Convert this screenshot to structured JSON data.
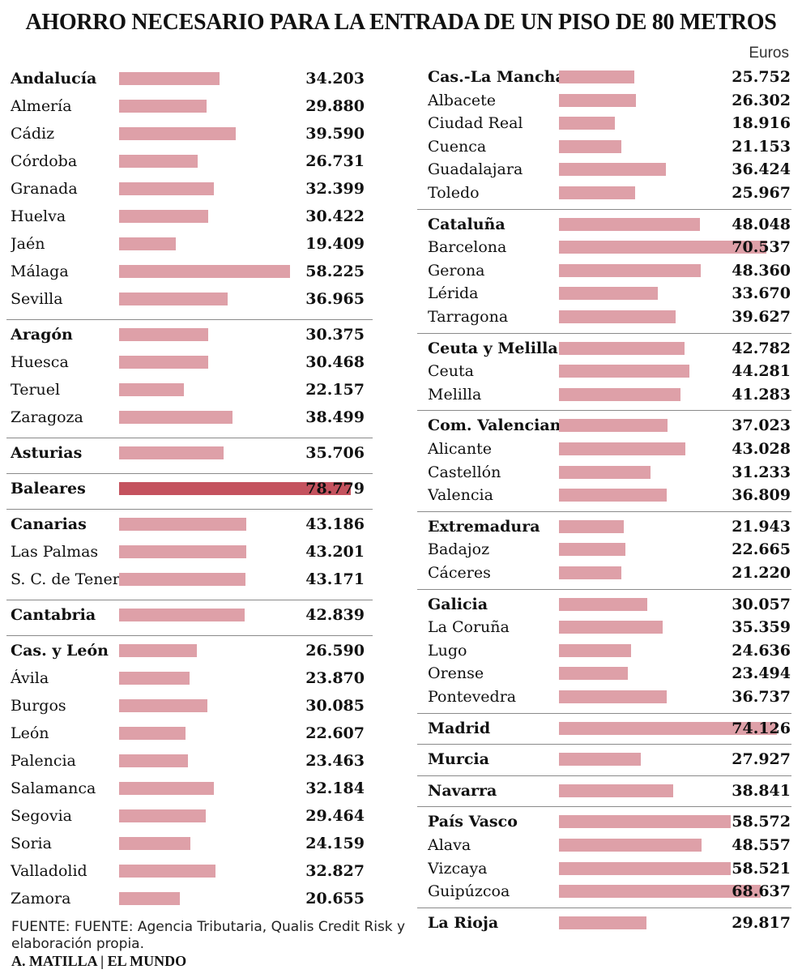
{
  "title": "AHORRO NECESARIO PARA LA ENTRADA DE UN PISO DE 80 METROS",
  "unit": "Euros",
  "source": "FUENTE: FUENTE: Agencia Tributaria, Qualis Credit Risk y elaboración propia.",
  "credit": "A. MATILLA | EL MUNDO",
  "colors": {
    "bar": "#dea0a8",
    "highlight": "#c4525e",
    "separator": "#8a8a8a"
  },
  "chart_data": {
    "type": "bar",
    "orientation": "horizontal",
    "x_range": [
      0,
      80000
    ],
    "grid": false,
    "columns": [
      {
        "groups": [
          {
            "items": [
              {
                "label": "Andalucía",
                "value": 34203,
                "display": "34.203",
                "aggregate": true
              },
              {
                "label": "Almería",
                "value": 29880,
                "display": "29.880"
              },
              {
                "label": "Cádiz",
                "value": 39590,
                "display": "39.590"
              },
              {
                "label": "Córdoba",
                "value": 26731,
                "display": "26.731"
              },
              {
                "label": "Granada",
                "value": 32399,
                "display": "32.399"
              },
              {
                "label": "Huelva",
                "value": 30422,
                "display": "30.422"
              },
              {
                "label": "Jaén",
                "value": 19409,
                "display": "19.409"
              },
              {
                "label": "Málaga",
                "value": 58225,
                "display": "58.225"
              },
              {
                "label": "Sevilla",
                "value": 36965,
                "display": "36.965"
              }
            ]
          },
          {
            "items": [
              {
                "label": "Aragón",
                "value": 30375,
                "display": "30.375",
                "aggregate": true
              },
              {
                "label": "Huesca",
                "value": 30468,
                "display": "30.468"
              },
              {
                "label": "Teruel",
                "value": 22157,
                "display": "22.157"
              },
              {
                "label": "Zaragoza",
                "value": 38499,
                "display": "38.499"
              }
            ]
          },
          {
            "items": [
              {
                "label": "Asturias",
                "value": 35706,
                "display": "35.706",
                "aggregate": true
              }
            ]
          },
          {
            "items": [
              {
                "label": "Baleares",
                "value": 78779,
                "display": "78.779",
                "aggregate": true,
                "highlight": true
              }
            ]
          },
          {
            "items": [
              {
                "label": "Canarias",
                "value": 43186,
                "display": "43.186",
                "aggregate": true
              },
              {
                "label": "Las Palmas",
                "value": 43201,
                "display": "43.201"
              },
              {
                "label": "S. C. de Tenerife",
                "value": 43171,
                "display": "43.171"
              }
            ]
          },
          {
            "items": [
              {
                "label": "Cantabria",
                "value": 42839,
                "display": "42.839",
                "aggregate": true
              }
            ]
          },
          {
            "items": [
              {
                "label": "Cas. y León",
                "value": 26590,
                "display": "26.590",
                "aggregate": true
              },
              {
                "label": "Ávila",
                "value": 23870,
                "display": "23.870"
              },
              {
                "label": "Burgos",
                "value": 30085,
                "display": "30.085"
              },
              {
                "label": "León",
                "value": 22607,
                "display": "22.607"
              },
              {
                "label": "Palencia",
                "value": 23463,
                "display": "23.463"
              },
              {
                "label": "Salamanca",
                "value": 32184,
                "display": "32.184"
              },
              {
                "label": "Segovia",
                "value": 29464,
                "display": "29.464"
              },
              {
                "label": "Soria",
                "value": 24159,
                "display": "24.159"
              },
              {
                "label": "Valladolid",
                "value": 32827,
                "display": "32.827"
              },
              {
                "label": "Zamora",
                "value": 20655,
                "display": "20.655"
              }
            ]
          }
        ]
      },
      {
        "groups": [
          {
            "items": [
              {
                "label": "Cas.-La Mancha",
                "value": 25752,
                "display": "25.752",
                "aggregate": true
              },
              {
                "label": "Albacete",
                "value": 26302,
                "display": "26.302"
              },
              {
                "label": "Ciudad Real",
                "value": 18916,
                "display": "18.916"
              },
              {
                "label": "Cuenca",
                "value": 21153,
                "display": "21.153"
              },
              {
                "label": "Guadalajara",
                "value": 36424,
                "display": "36.424"
              },
              {
                "label": "Toledo",
                "value": 25967,
                "display": "25.967"
              }
            ]
          },
          {
            "items": [
              {
                "label": "Cataluña",
                "value": 48048,
                "display": "48.048",
                "aggregate": true
              },
              {
                "label": "Barcelona",
                "value": 70537,
                "display": "70.537"
              },
              {
                "label": "Gerona",
                "value": 48360,
                "display": "48.360"
              },
              {
                "label": "Lérida",
                "value": 33670,
                "display": "33.670"
              },
              {
                "label": "Tarragona",
                "value": 39627,
                "display": "39.627"
              }
            ]
          },
          {
            "items": [
              {
                "label": "Ceuta y Melilla",
                "value": 42782,
                "display": "42.782",
                "aggregate": true
              },
              {
                "label": "Ceuta",
                "value": 44281,
                "display": "44.281"
              },
              {
                "label": "Melilla",
                "value": 41283,
                "display": "41.283"
              }
            ]
          },
          {
            "items": [
              {
                "label": "Com. Valenciana",
                "value": 37023,
                "display": "37.023",
                "aggregate": true
              },
              {
                "label": "Alicante",
                "value": 43028,
                "display": "43.028"
              },
              {
                "label": "Castellón",
                "value": 31233,
                "display": "31.233"
              },
              {
                "label": "Valencia",
                "value": 36809,
                "display": "36.809"
              }
            ]
          },
          {
            "items": [
              {
                "label": "Extremadura",
                "value": 21943,
                "display": "21.943",
                "aggregate": true
              },
              {
                "label": "Badajoz",
                "value": 22665,
                "display": "22.665"
              },
              {
                "label": "Cáceres",
                "value": 21220,
                "display": "21.220"
              }
            ]
          },
          {
            "items": [
              {
                "label": "Galicia",
                "value": 30057,
                "display": "30.057",
                "aggregate": true
              },
              {
                "label": "La Coruña",
                "value": 35359,
                "display": "35.359"
              },
              {
                "label": "Lugo",
                "value": 24636,
                "display": "24.636"
              },
              {
                "label": "Orense",
                "value": 23494,
                "display": "23.494"
              },
              {
                "label": "Pontevedra",
                "value": 36737,
                "display": "36.737"
              }
            ]
          },
          {
            "items": [
              {
                "label": "Madrid",
                "value": 74126,
                "display": "74.126",
                "aggregate": true
              }
            ]
          },
          {
            "items": [
              {
                "label": "Murcia",
                "value": 27927,
                "display": "27.927",
                "aggregate": true
              }
            ]
          },
          {
            "items": [
              {
                "label": "Navarra",
                "value": 38841,
                "display": "38.841",
                "aggregate": true
              }
            ]
          },
          {
            "items": [
              {
                "label": "País Vasco",
                "value": 58572,
                "display": "58.572",
                "aggregate": true
              },
              {
                "label": "Alava",
                "value": 48557,
                "display": "48.557"
              },
              {
                "label": "Vizcaya",
                "value": 58521,
                "display": "58.521"
              },
              {
                "label": "Guipúzcoa",
                "value": 68637,
                "display": "68.637"
              }
            ]
          },
          {
            "items": [
              {
                "label": "La Rioja",
                "value": 29817,
                "display": "29.817",
                "aggregate": true
              }
            ]
          }
        ]
      }
    ]
  }
}
